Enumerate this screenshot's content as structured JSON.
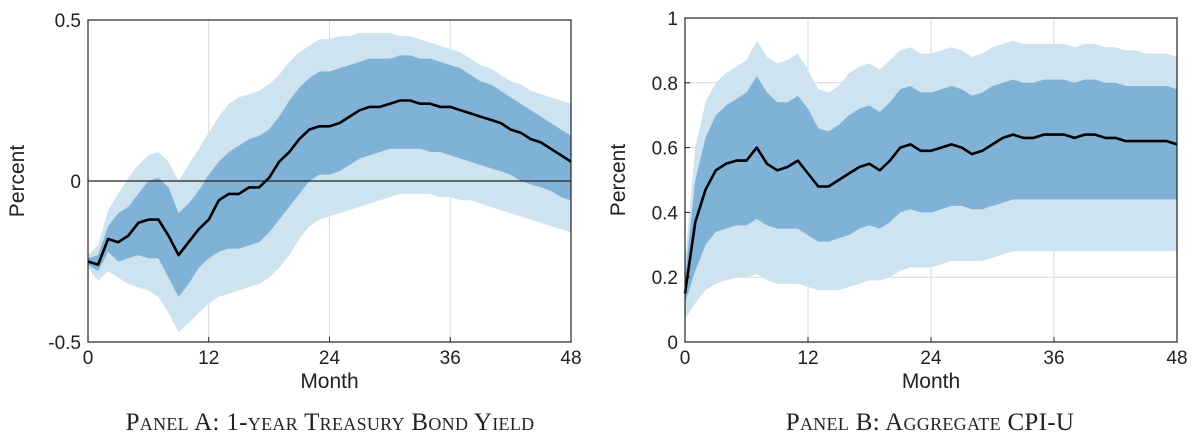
{
  "chart_data": [
    {
      "type": "area",
      "panel": "A",
      "caption": "PANEL A: 1-YEAR TREASURY BOND YIELD",
      "xlabel": "Month",
      "ylabel": "Percent",
      "xlim": [
        0,
        48
      ],
      "ylim": [
        -0.5,
        0.5
      ],
      "xticks": [
        0,
        12,
        24,
        36,
        48
      ],
      "yticks": [
        -0.5,
        0,
        0.5
      ],
      "ytick_labels": [
        "-0.5",
        "0",
        "0.5"
      ],
      "grid": true,
      "zero_line": true,
      "colors": {
        "outer_band": "#cde3ef",
        "inner_band": "#7fb2d6",
        "line": "#000000",
        "grid": "#d9d9d9"
      },
      "x": [
        0,
        1,
        2,
        3,
        4,
        5,
        6,
        7,
        8,
        9,
        10,
        11,
        12,
        13,
        14,
        15,
        16,
        17,
        18,
        19,
        20,
        21,
        22,
        23,
        24,
        25,
        26,
        27,
        28,
        29,
        30,
        31,
        32,
        33,
        34,
        35,
        36,
        37,
        38,
        39,
        40,
        41,
        42,
        43,
        44,
        45,
        46,
        47,
        48
      ],
      "series": [
        {
          "role": "median",
          "values": [
            -0.25,
            -0.26,
            -0.18,
            -0.19,
            -0.17,
            -0.13,
            -0.12,
            -0.12,
            -0.17,
            -0.23,
            -0.19,
            -0.15,
            -0.12,
            -0.06,
            -0.04,
            -0.04,
            -0.02,
            -0.02,
            0.01,
            0.06,
            0.09,
            0.13,
            0.16,
            0.17,
            0.17,
            0.18,
            0.2,
            0.22,
            0.23,
            0.23,
            0.24,
            0.25,
            0.25,
            0.24,
            0.24,
            0.23,
            0.23,
            0.22,
            0.21,
            0.2,
            0.19,
            0.18,
            0.16,
            0.15,
            0.13,
            0.12,
            0.1,
            0.08,
            0.06
          ]
        },
        {
          "role": "inner_upper",
          "values": [
            -0.24,
            -0.23,
            -0.14,
            -0.1,
            -0.08,
            -0.04,
            0,
            0.01,
            -0.02,
            -0.1,
            -0.07,
            -0.03,
            0.02,
            0.06,
            0.09,
            0.11,
            0.13,
            0.14,
            0.16,
            0.2,
            0.25,
            0.29,
            0.32,
            0.34,
            0.34,
            0.35,
            0.36,
            0.37,
            0.38,
            0.38,
            0.38,
            0.39,
            0.39,
            0.38,
            0.38,
            0.37,
            0.36,
            0.35,
            0.33,
            0.31,
            0.3,
            0.28,
            0.26,
            0.24,
            0.22,
            0.2,
            0.18,
            0.16,
            0.14
          ]
        },
        {
          "role": "inner_lower",
          "values": [
            -0.26,
            -0.28,
            -0.22,
            -0.25,
            -0.24,
            -0.23,
            -0.24,
            -0.24,
            -0.3,
            -0.36,
            -0.32,
            -0.27,
            -0.24,
            -0.22,
            -0.21,
            -0.21,
            -0.2,
            -0.19,
            -0.16,
            -0.12,
            -0.08,
            -0.04,
            0,
            0.02,
            0.02,
            0.03,
            0.05,
            0.07,
            0.08,
            0.09,
            0.1,
            0.1,
            0.1,
            0.1,
            0.09,
            0.09,
            0.08,
            0.07,
            0.06,
            0.05,
            0.04,
            0.03,
            0.02,
            0,
            -0.01,
            -0.02,
            -0.03,
            -0.05,
            -0.06
          ]
        },
        {
          "role": "outer_upper",
          "values": [
            -0.23,
            -0.2,
            -0.09,
            -0.04,
            0.01,
            0.05,
            0.08,
            0.09,
            0.06,
            0,
            0.05,
            0.1,
            0.15,
            0.2,
            0.24,
            0.26,
            0.27,
            0.28,
            0.3,
            0.33,
            0.37,
            0.4,
            0.42,
            0.44,
            0.44,
            0.45,
            0.45,
            0.46,
            0.46,
            0.46,
            0.46,
            0.45,
            0.45,
            0.44,
            0.43,
            0.42,
            0.41,
            0.4,
            0.38,
            0.36,
            0.35,
            0.33,
            0.31,
            0.3,
            0.28,
            0.27,
            0.26,
            0.25,
            0.24
          ]
        },
        {
          "role": "outer_lower",
          "values": [
            -0.27,
            -0.31,
            -0.28,
            -0.3,
            -0.32,
            -0.33,
            -0.34,
            -0.36,
            -0.41,
            -0.47,
            -0.44,
            -0.41,
            -0.38,
            -0.36,
            -0.35,
            -0.34,
            -0.33,
            -0.32,
            -0.3,
            -0.27,
            -0.23,
            -0.18,
            -0.14,
            -0.12,
            -0.11,
            -0.1,
            -0.09,
            -0.08,
            -0.07,
            -0.06,
            -0.05,
            -0.04,
            -0.04,
            -0.04,
            -0.04,
            -0.05,
            -0.05,
            -0.06,
            -0.06,
            -0.07,
            -0.08,
            -0.09,
            -0.1,
            -0.11,
            -0.12,
            -0.13,
            -0.14,
            -0.15,
            -0.16
          ]
        }
      ]
    },
    {
      "type": "area",
      "panel": "B",
      "caption": "PANEL B: AGGREGATE CPI-U",
      "xlabel": "Month",
      "ylabel": "Percent",
      "xlim": [
        0,
        48
      ],
      "ylim": [
        0,
        1
      ],
      "xticks": [
        0,
        12,
        24,
        36,
        48
      ],
      "yticks": [
        0,
        0.2,
        0.4,
        0.6,
        0.8,
        1
      ],
      "ytick_labels": [
        "0",
        "0.2",
        "0.4",
        "0.6",
        "0.8",
        "1"
      ],
      "grid": true,
      "zero_line": false,
      "colors": {
        "outer_band": "#cde3ef",
        "inner_band": "#7fb2d6",
        "line": "#000000",
        "grid": "#d9d9d9"
      },
      "x": [
        0,
        1,
        2,
        3,
        4,
        5,
        6,
        7,
        8,
        9,
        10,
        11,
        12,
        13,
        14,
        15,
        16,
        17,
        18,
        19,
        20,
        21,
        22,
        23,
        24,
        25,
        26,
        27,
        28,
        29,
        30,
        31,
        32,
        33,
        34,
        35,
        36,
        37,
        38,
        39,
        40,
        41,
        42,
        43,
        44,
        45,
        46,
        47,
        48
      ],
      "series": [
        {
          "role": "median",
          "values": [
            0.15,
            0.37,
            0.47,
            0.53,
            0.55,
            0.56,
            0.56,
            0.6,
            0.55,
            0.53,
            0.54,
            0.56,
            0.52,
            0.48,
            0.48,
            0.5,
            0.52,
            0.54,
            0.55,
            0.53,
            0.56,
            0.6,
            0.61,
            0.59,
            0.59,
            0.6,
            0.61,
            0.6,
            0.58,
            0.59,
            0.61,
            0.63,
            0.64,
            0.63,
            0.63,
            0.64,
            0.64,
            0.64,
            0.63,
            0.64,
            0.64,
            0.63,
            0.63,
            0.62,
            0.62,
            0.62,
            0.62,
            0.62,
            0.61
          ]
        },
        {
          "role": "inner_upper",
          "values": [
            0.2,
            0.5,
            0.63,
            0.7,
            0.73,
            0.75,
            0.77,
            0.82,
            0.77,
            0.74,
            0.74,
            0.76,
            0.72,
            0.66,
            0.65,
            0.67,
            0.7,
            0.72,
            0.73,
            0.71,
            0.74,
            0.78,
            0.79,
            0.77,
            0.77,
            0.78,
            0.79,
            0.78,
            0.76,
            0.77,
            0.79,
            0.8,
            0.81,
            0.8,
            0.8,
            0.81,
            0.81,
            0.81,
            0.8,
            0.81,
            0.81,
            0.8,
            0.8,
            0.79,
            0.79,
            0.79,
            0.79,
            0.79,
            0.78
          ]
        },
        {
          "role": "inner_lower",
          "values": [
            0.12,
            0.22,
            0.3,
            0.34,
            0.35,
            0.36,
            0.36,
            0.38,
            0.36,
            0.35,
            0.35,
            0.35,
            0.33,
            0.31,
            0.31,
            0.32,
            0.33,
            0.35,
            0.36,
            0.35,
            0.37,
            0.4,
            0.41,
            0.4,
            0.4,
            0.41,
            0.42,
            0.42,
            0.41,
            0.41,
            0.42,
            0.43,
            0.44,
            0.44,
            0.44,
            0.44,
            0.44,
            0.44,
            0.44,
            0.44,
            0.44,
            0.44,
            0.44,
            0.44,
            0.44,
            0.44,
            0.44,
            0.44,
            0.44
          ]
        },
        {
          "role": "outer_upper",
          "values": [
            0.25,
            0.6,
            0.74,
            0.8,
            0.83,
            0.85,
            0.87,
            0.93,
            0.88,
            0.86,
            0.87,
            0.89,
            0.84,
            0.78,
            0.77,
            0.79,
            0.83,
            0.85,
            0.86,
            0.84,
            0.87,
            0.9,
            0.91,
            0.89,
            0.89,
            0.9,
            0.91,
            0.9,
            0.88,
            0.89,
            0.91,
            0.92,
            0.93,
            0.92,
            0.92,
            0.92,
            0.92,
            0.92,
            0.91,
            0.92,
            0.92,
            0.91,
            0.91,
            0.9,
            0.9,
            0.89,
            0.89,
            0.89,
            0.88
          ]
        },
        {
          "role": "outer_lower",
          "values": [
            0.07,
            0.12,
            0.16,
            0.18,
            0.19,
            0.2,
            0.2,
            0.21,
            0.19,
            0.18,
            0.18,
            0.18,
            0.17,
            0.16,
            0.16,
            0.16,
            0.17,
            0.18,
            0.19,
            0.19,
            0.2,
            0.22,
            0.23,
            0.23,
            0.23,
            0.24,
            0.25,
            0.25,
            0.25,
            0.25,
            0.26,
            0.27,
            0.28,
            0.28,
            0.28,
            0.28,
            0.28,
            0.28,
            0.28,
            0.28,
            0.28,
            0.28,
            0.28,
            0.28,
            0.28,
            0.28,
            0.28,
            0.28,
            0.28
          ]
        }
      ]
    }
  ]
}
